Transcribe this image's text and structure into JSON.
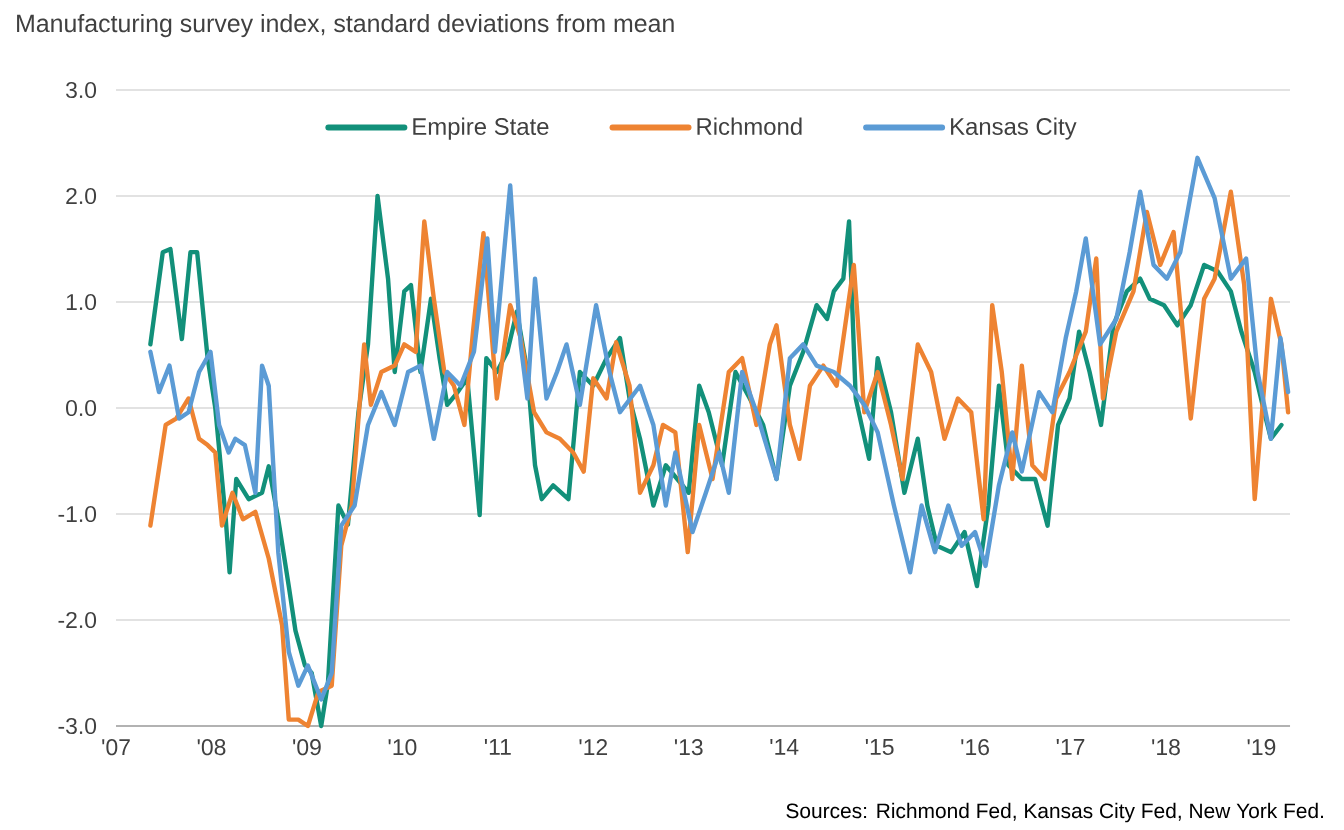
{
  "chart_data": {
    "type": "line",
    "title": "Manufacturing survey index, standard deviations from mean",
    "annotations": [
      "Sources: Richmond Fed, Kansas City Fed, New York Fed."
    ],
    "xlim": [
      2007,
      2019.3
    ],
    "ylim": [
      -3,
      3
    ],
    "xticks": [
      {
        "value": 2007,
        "label": "'07"
      },
      {
        "value": 2008,
        "label": "'08"
      },
      {
        "value": 2009,
        "label": "'09"
      },
      {
        "value": 2010,
        "label": "'10"
      },
      {
        "value": 2011,
        "label": "'11"
      },
      {
        "value": 2012,
        "label": "'12"
      },
      {
        "value": 2013,
        "label": "'13"
      },
      {
        "value": 2014,
        "label": "'14"
      },
      {
        "value": 2015,
        "label": "'15"
      },
      {
        "value": 2016,
        "label": "'16"
      },
      {
        "value": 2017,
        "label": "'17"
      },
      {
        "value": 2018,
        "label": "'18"
      },
      {
        "value": 2019,
        "label": "'19"
      }
    ],
    "yticks": [
      {
        "value": -3,
        "label": "-3.0"
      },
      {
        "value": -2,
        "label": "-2.0"
      },
      {
        "value": -1,
        "label": "-1.0"
      },
      {
        "value": 0,
        "label": "0.0"
      },
      {
        "value": 1,
        "label": "1.0"
      },
      {
        "value": 2,
        "label": "2.0"
      },
      {
        "value": 3,
        "label": "3.0"
      }
    ],
    "grid": "y",
    "legend": "top",
    "line_style": "solid",
    "marker": "none",
    "series": [
      {
        "name": "Empire State",
        "color": "#12907a",
        "x": [
          2007.36,
          2007.49,
          2007.57,
          2007.69,
          2007.78,
          2007.85,
          2007.96,
          2008.04,
          2008.15,
          2008.19,
          2008.26,
          2008.39,
          2008.53,
          2008.6,
          2008.7,
          2008.81,
          2008.88,
          2008.98,
          2009.05,
          2009.15,
          2009.22,
          2009.33,
          2009.43,
          2009.54,
          2009.64,
          2009.74,
          2009.85,
          2009.92,
          2010.02,
          2010.09,
          2010.19,
          2010.3,
          2010.39,
          2010.47,
          2010.58,
          2010.68,
          2010.81,
          2010.88,
          2010.99,
          2011.1,
          2011.2,
          2011.31,
          2011.39,
          2011.46,
          2011.58,
          2011.74,
          2011.86,
          2012.0,
          2012.14,
          2012.28,
          2012.38,
          2012.49,
          2012.63,
          2012.76,
          2013.0,
          2013.11,
          2013.21,
          2013.35,
          2013.49,
          2013.64,
          2013.78,
          2013.92,
          2014.06,
          2014.2,
          2014.34,
          2014.45,
          2014.52,
          2014.62,
          2014.68,
          2014.75,
          2014.89,
          2014.98,
          2015.12,
          2015.26,
          2015.4,
          2015.5,
          2015.6,
          2015.75,
          2015.89,
          2016.02,
          2016.14,
          2016.25,
          2016.35,
          2016.49,
          2016.63,
          2016.76,
          2016.87,
          2016.99,
          2017.09,
          2017.2,
          2017.32,
          2017.45,
          2017.59,
          2017.73,
          2017.83,
          2017.98,
          2018.12,
          2018.26,
          2018.4,
          2018.54,
          2018.68,
          2018.79,
          2018.93,
          2019.03,
          2019.1,
          2019.21
        ],
        "values": [
          0.6,
          1.47,
          1.5,
          0.65,
          1.47,
          1.47,
          0.47,
          0.0,
          -1.05,
          -1.55,
          -0.67,
          -0.86,
          -0.8,
          -0.55,
          -1.05,
          -1.68,
          -2.1,
          -2.43,
          -2.5,
          -3.0,
          -2.6,
          -0.92,
          -1.1,
          -0.04,
          0.6,
          2.0,
          1.22,
          0.34,
          1.1,
          1.16,
          0.34,
          1.03,
          0.47,
          0.03,
          0.15,
          0.28,
          -1.01,
          0.47,
          0.34,
          0.53,
          0.91,
          0.34,
          -0.54,
          -0.86,
          -0.73,
          -0.86,
          0.34,
          0.21,
          0.47,
          0.66,
          0.09,
          -0.29,
          -0.92,
          -0.54,
          -0.8,
          0.21,
          -0.04,
          -0.54,
          0.34,
          0.09,
          -0.16,
          -0.67,
          0.21,
          0.53,
          0.97,
          0.84,
          1.1,
          1.22,
          1.76,
          0.09,
          -0.48,
          0.47,
          -0.04,
          -0.8,
          -0.29,
          -0.92,
          -1.3,
          -1.36,
          -1.17,
          -1.68,
          -0.92,
          0.21,
          -0.54,
          -0.67,
          -0.67,
          -1.11,
          -0.16,
          0.09,
          0.72,
          0.34,
          -0.16,
          0.78,
          1.1,
          1.22,
          1.03,
          0.97,
          0.78,
          0.97,
          1.35,
          1.29,
          1.1,
          0.72,
          0.34,
          -0.04,
          -0.29,
          -0.16
        ]
      },
      {
        "name": "Richmond",
        "color": "#ee8332",
        "x": [
          2007.36,
          2007.52,
          2007.63,
          2007.76,
          2007.87,
          2007.96,
          2008.04,
          2008.11,
          2008.22,
          2008.33,
          2008.46,
          2008.6,
          2008.74,
          2008.81,
          2008.91,
          2009.01,
          2009.12,
          2009.26,
          2009.36,
          2009.47,
          2009.6,
          2009.67,
          2009.78,
          2009.92,
          2010.02,
          2010.14,
          2010.23,
          2010.33,
          2010.44,
          2010.54,
          2010.65,
          2010.74,
          2010.85,
          2010.99,
          2011.13,
          2011.24,
          2011.38,
          2011.51,
          2011.65,
          2011.79,
          2011.9,
          2012.0,
          2012.14,
          2012.24,
          2012.38,
          2012.49,
          2012.63,
          2012.73,
          2012.86,
          2012.99,
          2013.11,
          2013.25,
          2013.42,
          2013.56,
          2013.71,
          2013.85,
          2013.92,
          2014.06,
          2014.16,
          2014.27,
          2014.41,
          2014.55,
          2014.73,
          2014.84,
          2014.98,
          2015.12,
          2015.24,
          2015.4,
          2015.54,
          2015.68,
          2015.82,
          2015.96,
          2016.09,
          2016.18,
          2016.28,
          2016.39,
          2016.49,
          2016.6,
          2016.73,
          2016.85,
          2016.99,
          2017.16,
          2017.27,
          2017.34,
          2017.48,
          2017.66,
          2017.8,
          2017.94,
          2018.08,
          2018.26,
          2018.4,
          2018.51,
          2018.68,
          2018.82,
          2018.93,
          2019.03,
          2019.1,
          2019.21,
          2019.28
        ],
        "values": [
          -1.11,
          -0.16,
          -0.1,
          0.09,
          -0.29,
          -0.35,
          -0.42,
          -1.11,
          -0.8,
          -1.05,
          -0.98,
          -1.42,
          -2.05,
          -2.94,
          -2.94,
          -3.0,
          -2.68,
          -2.62,
          -1.3,
          -0.92,
          0.6,
          0.03,
          0.34,
          0.4,
          0.6,
          0.53,
          1.76,
          1.03,
          0.34,
          0.21,
          -0.16,
          0.72,
          1.65,
          0.09,
          0.97,
          0.66,
          -0.04,
          -0.23,
          -0.29,
          -0.42,
          -0.6,
          0.28,
          0.09,
          0.62,
          0.21,
          -0.8,
          -0.54,
          -0.16,
          -0.23,
          -1.36,
          -0.16,
          -0.67,
          0.34,
          0.47,
          -0.16,
          0.6,
          0.78,
          -0.16,
          -0.48,
          0.21,
          0.4,
          0.21,
          1.35,
          -0.04,
          0.34,
          -0.16,
          -0.67,
          0.6,
          0.34,
          -0.29,
          0.09,
          -0.04,
          -1.05,
          0.97,
          0.34,
          -0.67,
          0.4,
          -0.54,
          -0.67,
          0.09,
          0.34,
          0.72,
          1.41,
          0.09,
          0.72,
          1.1,
          1.85,
          1.35,
          1.66,
          -0.1,
          1.03,
          1.22,
          2.04,
          1.16,
          -0.86,
          0.21,
          1.03,
          0.6,
          -0.04
        ]
      },
      {
        "name": "Kansas City",
        "color": "#5b9bd5",
        "x": [
          2007.36,
          2007.45,
          2007.56,
          2007.66,
          2007.76,
          2007.87,
          2007.99,
          2008.08,
          2008.18,
          2008.25,
          2008.35,
          2008.46,
          2008.53,
          2008.6,
          2008.7,
          2008.81,
          2008.91,
          2009.01,
          2009.15,
          2009.26,
          2009.36,
          2009.5,
          2009.64,
          2009.78,
          2009.92,
          2010.06,
          2010.19,
          2010.33,
          2010.47,
          2010.61,
          2010.75,
          2010.89,
          2010.97,
          2011.13,
          2011.24,
          2011.31,
          2011.39,
          2011.51,
          2011.62,
          2011.72,
          2011.86,
          2012.03,
          2012.17,
          2012.28,
          2012.49,
          2012.63,
          2012.76,
          2012.86,
          2013.04,
          2013.18,
          2013.32,
          2013.42,
          2013.56,
          2013.71,
          2013.92,
          2014.06,
          2014.2,
          2014.34,
          2014.52,
          2014.69,
          2014.84,
          2014.98,
          2015.15,
          2015.32,
          2015.44,
          2015.58,
          2015.72,
          2015.86,
          2016.0,
          2016.11,
          2016.25,
          2016.39,
          2016.49,
          2016.67,
          2016.81,
          2016.95,
          2017.06,
          2017.16,
          2017.31,
          2017.48,
          2017.62,
          2017.73,
          2017.87,
          2018.01,
          2018.15,
          2018.33,
          2018.51,
          2018.68,
          2018.84,
          2018.96,
          2019.1,
          2019.2,
          2019.28
        ],
        "values": [
          0.53,
          0.15,
          0.4,
          -0.1,
          -0.04,
          0.34,
          0.53,
          -0.16,
          -0.42,
          -0.29,
          -0.35,
          -0.8,
          0.4,
          0.21,
          -1.36,
          -2.3,
          -2.62,
          -2.43,
          -2.75,
          -2.5,
          -1.11,
          -0.92,
          -0.16,
          0.15,
          -0.16,
          0.34,
          0.4,
          -0.29,
          0.34,
          0.21,
          0.53,
          1.6,
          0.53,
          2.1,
          0.6,
          0.09,
          1.22,
          0.09,
          0.34,
          0.6,
          0.03,
          0.97,
          0.34,
          -0.04,
          0.21,
          -0.16,
          -0.92,
          -0.42,
          -1.17,
          -0.8,
          -0.42,
          -0.8,
          0.34,
          -0.04,
          -0.67,
          0.47,
          0.6,
          0.4,
          0.34,
          0.21,
          0.03,
          -0.23,
          -0.92,
          -1.55,
          -0.92,
          -1.36,
          -0.92,
          -1.3,
          -1.17,
          -1.49,
          -0.73,
          -0.23,
          -0.6,
          0.15,
          -0.04,
          0.66,
          1.1,
          1.6,
          0.6,
          0.84,
          1.47,
          2.04,
          1.35,
          1.22,
          1.47,
          2.36,
          1.98,
          1.22,
          1.41,
          0.34,
          -0.29,
          0.66,
          0.15
        ]
      }
    ]
  }
}
